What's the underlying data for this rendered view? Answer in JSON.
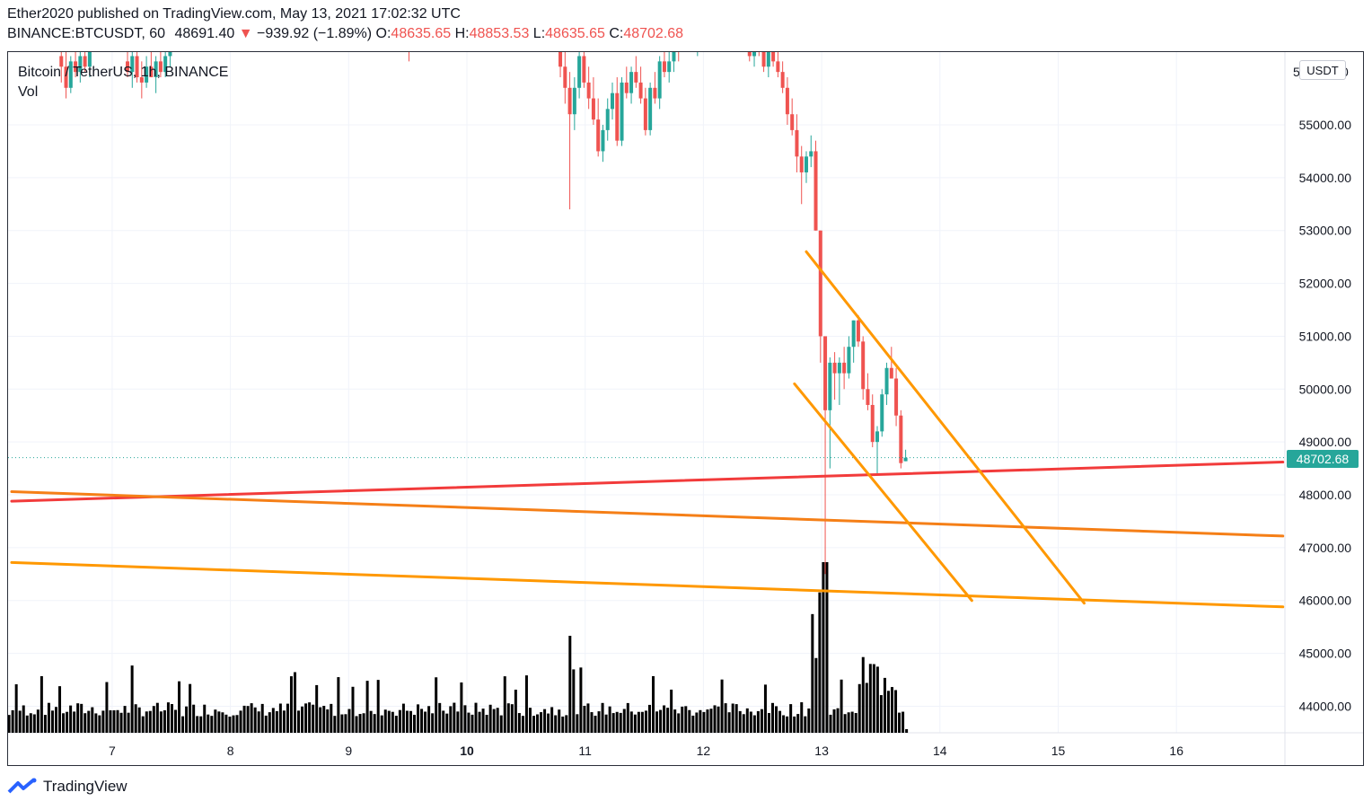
{
  "header": {
    "published_line": "Ether2020 published on TradingView.com, May 13, 2021 17:02:32 UTC",
    "symbol": "BINANCE:BTCUSDT, 60",
    "last": "48691.40",
    "change_arrow": "▼",
    "change": "−939.92 (−1.89%)",
    "open_label": "O:",
    "open": "48635.65",
    "high_label": "H:",
    "high": "48853.53",
    "low_label": "L:",
    "low": "48635.65",
    "close_label": "C:",
    "close": "48702.68"
  },
  "legend": {
    "title": "Bitcoin / TetherUS, 1h, BINANCE",
    "vol_label": "Vol"
  },
  "price_axis": {
    "unit": "USDT",
    "current_price": "48702.68",
    "top_partial_label": "5",
    "top_partial_suffix": "0"
  },
  "footer": {
    "brand": "TradingView"
  },
  "colors": {
    "up": "#26a69a",
    "down": "#ef5350",
    "volume": "#000000",
    "red_line": "#f23b3b",
    "orange_line": "#f57f17",
    "channel_line": "#ff9800"
  },
  "chart_data": {
    "type": "candlestick",
    "timeframe": "1h",
    "y_ticks": [
      55000,
      54000,
      53000,
      52000,
      51000,
      50000,
      49000,
      48000,
      47000,
      46000,
      45000,
      44000
    ],
    "y_tick_labels": [
      "55000.00",
      "54000.00",
      "53000.00",
      "52000.00",
      "51000.00",
      "50000.00",
      "49000.00",
      "48000.00",
      "47000.00",
      "46000.00",
      "45000.00",
      "44000.00"
    ],
    "x_ticks": [
      7,
      8,
      9,
      10,
      11,
      12,
      13,
      14,
      15,
      16
    ],
    "x_tick_labels": [
      "7",
      "8",
      "9",
      "10",
      "11",
      "12",
      "13",
      "14",
      "15",
      "16"
    ],
    "x_tick_bold": [
      false,
      false,
      false,
      true,
      false,
      false,
      false,
      false,
      false,
      false
    ],
    "x_range_days": [
      6.15,
      16.9
    ],
    "y_range": [
      43500,
      56400
    ],
    "grid": true,
    "last_price": 48702.68,
    "candles": [
      {
        "d": 6.57,
        "o": 56300,
        "h": 56800,
        "l": 55800,
        "c": 56100
      },
      {
        "d": 6.61,
        "o": 56100,
        "h": 56500,
        "l": 55500,
        "c": 55700
      },
      {
        "d": 6.65,
        "o": 55700,
        "h": 56300,
        "l": 55600,
        "c": 56200
      },
      {
        "d": 6.69,
        "o": 56200,
        "h": 56600,
        "l": 55900,
        "c": 56000
      },
      {
        "d": 6.73,
        "o": 56000,
        "h": 56400,
        "l": 55800,
        "c": 56300
      },
      {
        "d": 6.77,
        "o": 56300,
        "h": 56700,
        "l": 56000,
        "c": 56100
      },
      {
        "d": 6.81,
        "o": 56100,
        "h": 56600,
        "l": 55900,
        "c": 56400
      },
      {
        "d": 7.13,
        "o": 56200,
        "h": 56700,
        "l": 55900,
        "c": 56000
      },
      {
        "d": 7.17,
        "o": 56000,
        "h": 56400,
        "l": 55700,
        "c": 56300
      },
      {
        "d": 7.21,
        "o": 56300,
        "h": 56600,
        "l": 55800,
        "c": 55900
      },
      {
        "d": 7.25,
        "o": 55900,
        "h": 56200,
        "l": 55500,
        "c": 55800
      },
      {
        "d": 7.29,
        "o": 55800,
        "h": 56300,
        "l": 55700,
        "c": 56100
      },
      {
        "d": 7.33,
        "o": 56100,
        "h": 56500,
        "l": 55900,
        "c": 55900
      },
      {
        "d": 7.37,
        "o": 55900,
        "h": 56300,
        "l": 55600,
        "c": 56200
      },
      {
        "d": 7.41,
        "o": 56200,
        "h": 56600,
        "l": 55900,
        "c": 56000
      },
      {
        "d": 7.45,
        "o": 56000,
        "h": 56500,
        "l": 55900,
        "c": 56300
      },
      {
        "d": 7.49,
        "o": 56300,
        "h": 56700,
        "l": 56100,
        "c": 56500
      },
      {
        "d": 9.51,
        "o": 56600,
        "h": 56700,
        "l": 56200,
        "c": 56400
      },
      {
        "d": 10.79,
        "o": 56500,
        "h": 56700,
        "l": 55900,
        "c": 56100
      },
      {
        "d": 10.83,
        "o": 56100,
        "h": 56400,
        "l": 55400,
        "c": 55700
      },
      {
        "d": 10.87,
        "o": 55700,
        "h": 56000,
        "l": 53400,
        "c": 55200
      },
      {
        "d": 10.91,
        "o": 55200,
        "h": 55900,
        "l": 54900,
        "c": 55700
      },
      {
        "d": 10.95,
        "o": 55700,
        "h": 56400,
        "l": 55500,
        "c": 56300
      },
      {
        "d": 10.99,
        "o": 56300,
        "h": 56500,
        "l": 55700,
        "c": 55800
      },
      {
        "d": 11.03,
        "o": 55800,
        "h": 56100,
        "l": 55300,
        "c": 55500
      },
      {
        "d": 11.07,
        "o": 55500,
        "h": 55900,
        "l": 55000,
        "c": 55100
      },
      {
        "d": 11.11,
        "o": 55100,
        "h": 55500,
        "l": 54400,
        "c": 54500
      },
      {
        "d": 11.15,
        "o": 54500,
        "h": 55000,
        "l": 54300,
        "c": 54900
      },
      {
        "d": 11.19,
        "o": 54900,
        "h": 55500,
        "l": 54700,
        "c": 55300
      },
      {
        "d": 11.23,
        "o": 55300,
        "h": 55800,
        "l": 55100,
        "c": 55600
      },
      {
        "d": 11.27,
        "o": 55600,
        "h": 55900,
        "l": 54600,
        "c": 54700
      },
      {
        "d": 11.31,
        "o": 54700,
        "h": 55900,
        "l": 54600,
        "c": 55800
      },
      {
        "d": 11.35,
        "o": 55800,
        "h": 56100,
        "l": 55500,
        "c": 55600
      },
      {
        "d": 11.39,
        "o": 55600,
        "h": 56100,
        "l": 55400,
        "c": 56000
      },
      {
        "d": 11.43,
        "o": 56000,
        "h": 56300,
        "l": 55700,
        "c": 55800
      },
      {
        "d": 11.47,
        "o": 55800,
        "h": 56100,
        "l": 55400,
        "c": 55500
      },
      {
        "d": 11.51,
        "o": 55500,
        "h": 55700,
        "l": 54800,
        "c": 54900
      },
      {
        "d": 11.55,
        "o": 54900,
        "h": 55800,
        "l": 54800,
        "c": 55700
      },
      {
        "d": 11.59,
        "o": 55700,
        "h": 56000,
        "l": 55400,
        "c": 55500
      },
      {
        "d": 11.63,
        "o": 55500,
        "h": 56300,
        "l": 55300,
        "c": 56200
      },
      {
        "d": 11.67,
        "o": 56200,
        "h": 56400,
        "l": 55900,
        "c": 56000
      },
      {
        "d": 11.71,
        "o": 56000,
        "h": 56400,
        "l": 55800,
        "c": 56200
      },
      {
        "d": 11.75,
        "o": 56200,
        "h": 56600,
        "l": 56000,
        "c": 56500
      },
      {
        "d": 11.79,
        "o": 56500,
        "h": 56700,
        "l": 56200,
        "c": 56400
      },
      {
        "d": 11.95,
        "o": 56500,
        "h": 56700,
        "l": 56300,
        "c": 56600
      },
      {
        "d": 12.39,
        "o": 56600,
        "h": 56800,
        "l": 56200,
        "c": 56300
      },
      {
        "d": 12.43,
        "o": 56300,
        "h": 56600,
        "l": 56100,
        "c": 56500
      },
      {
        "d": 12.47,
        "o": 56500,
        "h": 56800,
        "l": 56300,
        "c": 56400
      },
      {
        "d": 12.51,
        "o": 56400,
        "h": 56700,
        "l": 56000,
        "c": 56100
      },
      {
        "d": 12.55,
        "o": 56100,
        "h": 56500,
        "l": 55900,
        "c": 56400
      },
      {
        "d": 12.59,
        "o": 56400,
        "h": 56700,
        "l": 56100,
        "c": 56200
      },
      {
        "d": 12.63,
        "o": 56200,
        "h": 56400,
        "l": 55900,
        "c": 56000
      },
      {
        "d": 12.67,
        "o": 56000,
        "h": 56200,
        "l": 55600,
        "c": 55700
      },
      {
        "d": 12.71,
        "o": 55700,
        "h": 55900,
        "l": 55000,
        "c": 55200
      },
      {
        "d": 12.75,
        "o": 55200,
        "h": 55500,
        "l": 54800,
        "c": 54900
      },
      {
        "d": 12.79,
        "o": 54900,
        "h": 55200,
        "l": 54100,
        "c": 54400
      },
      {
        "d": 12.83,
        "o": 54400,
        "h": 54600,
        "l": 53500,
        "c": 54100
      },
      {
        "d": 12.87,
        "o": 54100,
        "h": 54500,
        "l": 53900,
        "c": 54400
      },
      {
        "d": 12.91,
        "o": 54400,
        "h": 54800,
        "l": 54200,
        "c": 54500
      },
      {
        "d": 12.95,
        "o": 54500,
        "h": 54700,
        "l": 53000,
        "c": 53000
      },
      {
        "d": 12.99,
        "o": 53000,
        "h": 53000,
        "l": 50500,
        "c": 51000
      },
      {
        "d": 13.03,
        "o": 51000,
        "h": 51000,
        "l": 46500,
        "c": 49600
      },
      {
        "d": 13.07,
        "o": 49600,
        "h": 50600,
        "l": 48500,
        "c": 50500
      },
      {
        "d": 13.11,
        "o": 50500,
        "h": 50700,
        "l": 49800,
        "c": 50300
      },
      {
        "d": 13.15,
        "o": 50300,
        "h": 50600,
        "l": 49700,
        "c": 50500
      },
      {
        "d": 13.19,
        "o": 50500,
        "h": 50800,
        "l": 50000,
        "c": 50300
      },
      {
        "d": 13.23,
        "o": 50300,
        "h": 51000,
        "l": 50200,
        "c": 50800
      },
      {
        "d": 13.27,
        "o": 50800,
        "h": 51300,
        "l": 50500,
        "c": 51300
      },
      {
        "d": 13.31,
        "o": 51300,
        "h": 51400,
        "l": 50800,
        "c": 50900
      },
      {
        "d": 13.35,
        "o": 50900,
        "h": 51000,
        "l": 49800,
        "c": 50000
      },
      {
        "d": 13.39,
        "o": 50000,
        "h": 50300,
        "l": 49600,
        "c": 49700
      },
      {
        "d": 13.43,
        "o": 49700,
        "h": 49900,
        "l": 48900,
        "c": 49000
      },
      {
        "d": 13.47,
        "o": 49000,
        "h": 49300,
        "l": 48400,
        "c": 49200
      },
      {
        "d": 13.51,
        "o": 49200,
        "h": 50000,
        "l": 49100,
        "c": 49900
      },
      {
        "d": 13.55,
        "o": 49900,
        "h": 50500,
        "l": 49700,
        "c": 50400
      },
      {
        "d": 13.59,
        "o": 50400,
        "h": 50800,
        "l": 50200,
        "c": 50200
      },
      {
        "d": 13.63,
        "o": 50200,
        "h": 50400,
        "l": 49300,
        "c": 49500
      },
      {
        "d": 13.67,
        "o": 49500,
        "h": 49600,
        "l": 48500,
        "c": 48600
      },
      {
        "d": 13.71,
        "o": 48635.65,
        "h": 48853.53,
        "l": 48635.65,
        "c": 48702.68
      }
    ],
    "volume": {
      "bar_count": 250,
      "volume_note": "black volume histogram along bottom; spike near day 13"
    },
    "drawings": [
      {
        "name": "red-support-line",
        "color": "#f23b3b",
        "from": [
          6.15,
          47880
        ],
        "to": [
          16.9,
          48620
        ]
      },
      {
        "name": "orange-line-upper",
        "color": "#f57f17",
        "from": [
          6.15,
          48060
        ],
        "to": [
          16.9,
          47220
        ]
      },
      {
        "name": "orange-line-lower",
        "color": "#ff9800",
        "from": [
          6.15,
          46720
        ],
        "to": [
          16.9,
          45880
        ]
      },
      {
        "name": "channel-upper-line",
        "color": "#ff9800",
        "from": [
          12.87,
          52600
        ],
        "to": [
          15.22,
          45950
        ]
      },
      {
        "name": "channel-lower-line",
        "color": "#ff9800",
        "from": [
          12.77,
          50100
        ],
        "to": [
          14.27,
          46000
        ]
      }
    ]
  }
}
